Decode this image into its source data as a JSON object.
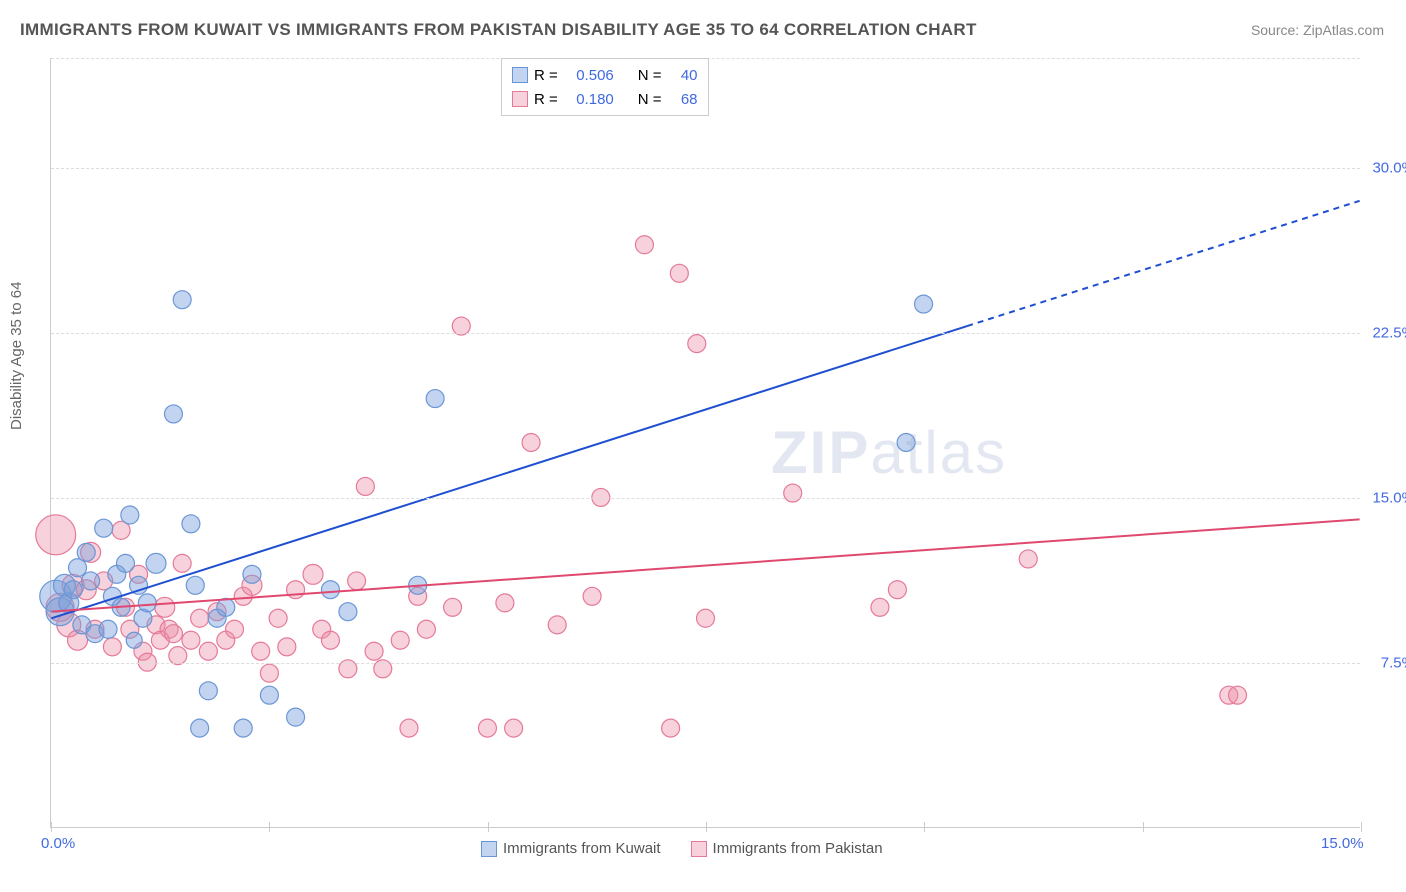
{
  "title": "IMMIGRANTS FROM KUWAIT VS IMMIGRANTS FROM PAKISTAN DISABILITY AGE 35 TO 64 CORRELATION CHART",
  "source": "Source: ZipAtlas.com",
  "ylabel": "Disability Age 35 to 64",
  "watermark_bold": "ZIP",
  "watermark_thin": "atlas",
  "chart": {
    "type": "scatter",
    "xlim": [
      0,
      15
    ],
    "ylim": [
      0,
      35
    ],
    "x_ticks": [
      0,
      2.5,
      5,
      7.5,
      10,
      12.5,
      15
    ],
    "x_tick_labels_shown": {
      "0": "0.0%",
      "15": "15.0%"
    },
    "y_gridlines": [
      7.5,
      15.0,
      22.5,
      30.0
    ],
    "y_tick_labels": {
      "7.5": "7.5%",
      "15.0": "15.0%",
      "22.5": "22.5%",
      "30.0": "30.0%"
    },
    "background_color": "#ffffff",
    "grid_color": "#dddddd",
    "axis_color": "#cccccc",
    "xtick_label_color": "#4169e1",
    "ytick_label_color": "#4169e1",
    "series": [
      {
        "name": "Immigrants from Kuwait",
        "marker_fill": "rgba(120,160,220,0.45)",
        "marker_stroke": "#6b96d6",
        "marker_radius": 9,
        "regression": {
          "color": "#1f4fd1",
          "width": 2,
          "x1": 0,
          "y1": 9.5,
          "x2": 15,
          "y2": 28.5,
          "solid_until_x": 10.5
        },
        "R": "0.506",
        "N": "40",
        "points": [
          [
            0.05,
            10.5,
            16
          ],
          [
            0.1,
            9.8,
            14
          ],
          [
            0.15,
            11.0,
            11
          ],
          [
            0.2,
            10.2,
            10
          ],
          [
            0.25,
            10.8,
            9
          ],
          [
            0.3,
            11.8,
            9
          ],
          [
            0.35,
            9.2,
            9
          ],
          [
            0.4,
            12.5,
            9
          ],
          [
            0.45,
            11.2,
            9
          ],
          [
            0.5,
            8.8,
            9
          ],
          [
            0.6,
            13.6,
            9
          ],
          [
            0.65,
            9.0,
            9
          ],
          [
            0.7,
            10.5,
            9
          ],
          [
            0.75,
            11.5,
            9
          ],
          [
            0.8,
            10.0,
            9
          ],
          [
            0.85,
            12.0,
            9
          ],
          [
            0.9,
            14.2,
            9
          ],
          [
            0.95,
            8.5,
            8
          ],
          [
            1.0,
            11.0,
            9
          ],
          [
            1.05,
            9.5,
            9
          ],
          [
            1.1,
            10.2,
            9
          ],
          [
            1.2,
            12.0,
            10
          ],
          [
            1.4,
            18.8,
            9
          ],
          [
            1.5,
            24.0,
            9
          ],
          [
            1.6,
            13.8,
            9
          ],
          [
            1.65,
            11.0,
            9
          ],
          [
            1.7,
            4.5,
            9
          ],
          [
            1.8,
            6.2,
            9
          ],
          [
            1.9,
            9.5,
            9
          ],
          [
            2.0,
            10.0,
            9
          ],
          [
            2.2,
            4.5,
            9
          ],
          [
            2.3,
            11.5,
            9
          ],
          [
            2.5,
            6.0,
            9
          ],
          [
            2.8,
            5.0,
            9
          ],
          [
            3.2,
            10.8,
            9
          ],
          [
            3.4,
            9.8,
            9
          ],
          [
            4.2,
            11.0,
            9
          ],
          [
            4.4,
            19.5,
            9
          ],
          [
            9.8,
            17.5,
            9
          ],
          [
            10.0,
            23.8,
            9
          ]
        ]
      },
      {
        "name": "Immigrants from Pakistan",
        "marker_fill": "rgba(235,140,165,0.40)",
        "marker_stroke": "#e57a98",
        "marker_radius": 9,
        "regression": {
          "color": "#e0486f",
          "width": 2,
          "x1": 0,
          "y1": 9.8,
          "x2": 15,
          "y2": 14.0,
          "solid_until_x": 15
        },
        "R": "0.180",
        "N": "68",
        "points": [
          [
            0.05,
            13.3,
            20
          ],
          [
            0.1,
            10.0,
            14
          ],
          [
            0.2,
            9.2,
            12
          ],
          [
            0.25,
            11.0,
            11
          ],
          [
            0.3,
            8.5,
            10
          ],
          [
            0.4,
            10.8,
            10
          ],
          [
            0.45,
            12.5,
            10
          ],
          [
            0.5,
            9.0,
            9
          ],
          [
            0.6,
            11.2,
            9
          ],
          [
            0.7,
            8.2,
            9
          ],
          [
            0.8,
            13.5,
            9
          ],
          [
            0.85,
            10.0,
            9
          ],
          [
            0.9,
            9.0,
            9
          ],
          [
            1.0,
            11.5,
            9
          ],
          [
            1.05,
            8.0,
            9
          ],
          [
            1.1,
            7.5,
            9
          ],
          [
            1.2,
            9.2,
            9
          ],
          [
            1.25,
            8.5,
            9
          ],
          [
            1.3,
            10.0,
            10
          ],
          [
            1.35,
            9.0,
            9
          ],
          [
            1.4,
            8.8,
            9
          ],
          [
            1.45,
            7.8,
            9
          ],
          [
            1.5,
            12.0,
            9
          ],
          [
            1.6,
            8.5,
            9
          ],
          [
            1.7,
            9.5,
            9
          ],
          [
            1.8,
            8.0,
            9
          ],
          [
            1.9,
            9.8,
            9
          ],
          [
            2.0,
            8.5,
            9
          ],
          [
            2.1,
            9.0,
            9
          ],
          [
            2.2,
            10.5,
            9
          ],
          [
            2.3,
            11.0,
            10
          ],
          [
            2.4,
            8.0,
            9
          ],
          [
            2.5,
            7.0,
            9
          ],
          [
            2.6,
            9.5,
            9
          ],
          [
            2.7,
            8.2,
            9
          ],
          [
            2.8,
            10.8,
            9
          ],
          [
            3.0,
            11.5,
            10
          ],
          [
            3.1,
            9.0,
            9
          ],
          [
            3.2,
            8.5,
            9
          ],
          [
            3.4,
            7.2,
            9
          ],
          [
            3.5,
            11.2,
            9
          ],
          [
            3.6,
            15.5,
            9
          ],
          [
            3.7,
            8.0,
            9
          ],
          [
            3.8,
            7.2,
            9
          ],
          [
            4.0,
            8.5,
            9
          ],
          [
            4.1,
            4.5,
            9
          ],
          [
            4.2,
            10.5,
            9
          ],
          [
            4.3,
            9.0,
            9
          ],
          [
            4.6,
            10.0,
            9
          ],
          [
            4.7,
            22.8,
            9
          ],
          [
            5.0,
            4.5,
            9
          ],
          [
            5.2,
            10.2,
            9
          ],
          [
            5.3,
            4.5,
            9
          ],
          [
            5.5,
            17.5,
            9
          ],
          [
            5.8,
            9.2,
            9
          ],
          [
            6.2,
            10.5,
            9
          ],
          [
            6.3,
            15.0,
            9
          ],
          [
            6.8,
            26.5,
            9
          ],
          [
            7.1,
            4.5,
            9
          ],
          [
            7.2,
            25.2,
            9
          ],
          [
            7.4,
            22.0,
            9
          ],
          [
            7.5,
            9.5,
            9
          ],
          [
            8.5,
            15.2,
            9
          ],
          [
            9.5,
            10.0,
            9
          ],
          [
            9.7,
            10.8,
            9
          ],
          [
            11.2,
            12.2,
            9
          ],
          [
            13.5,
            6.0,
            9
          ],
          [
            13.6,
            6.0,
            9
          ]
        ]
      }
    ]
  },
  "legend_top": {
    "R_label": "R =",
    "N_label": "N ="
  },
  "legend_bottom": [
    "Immigrants from Kuwait",
    "Immigrants from Pakistan"
  ]
}
